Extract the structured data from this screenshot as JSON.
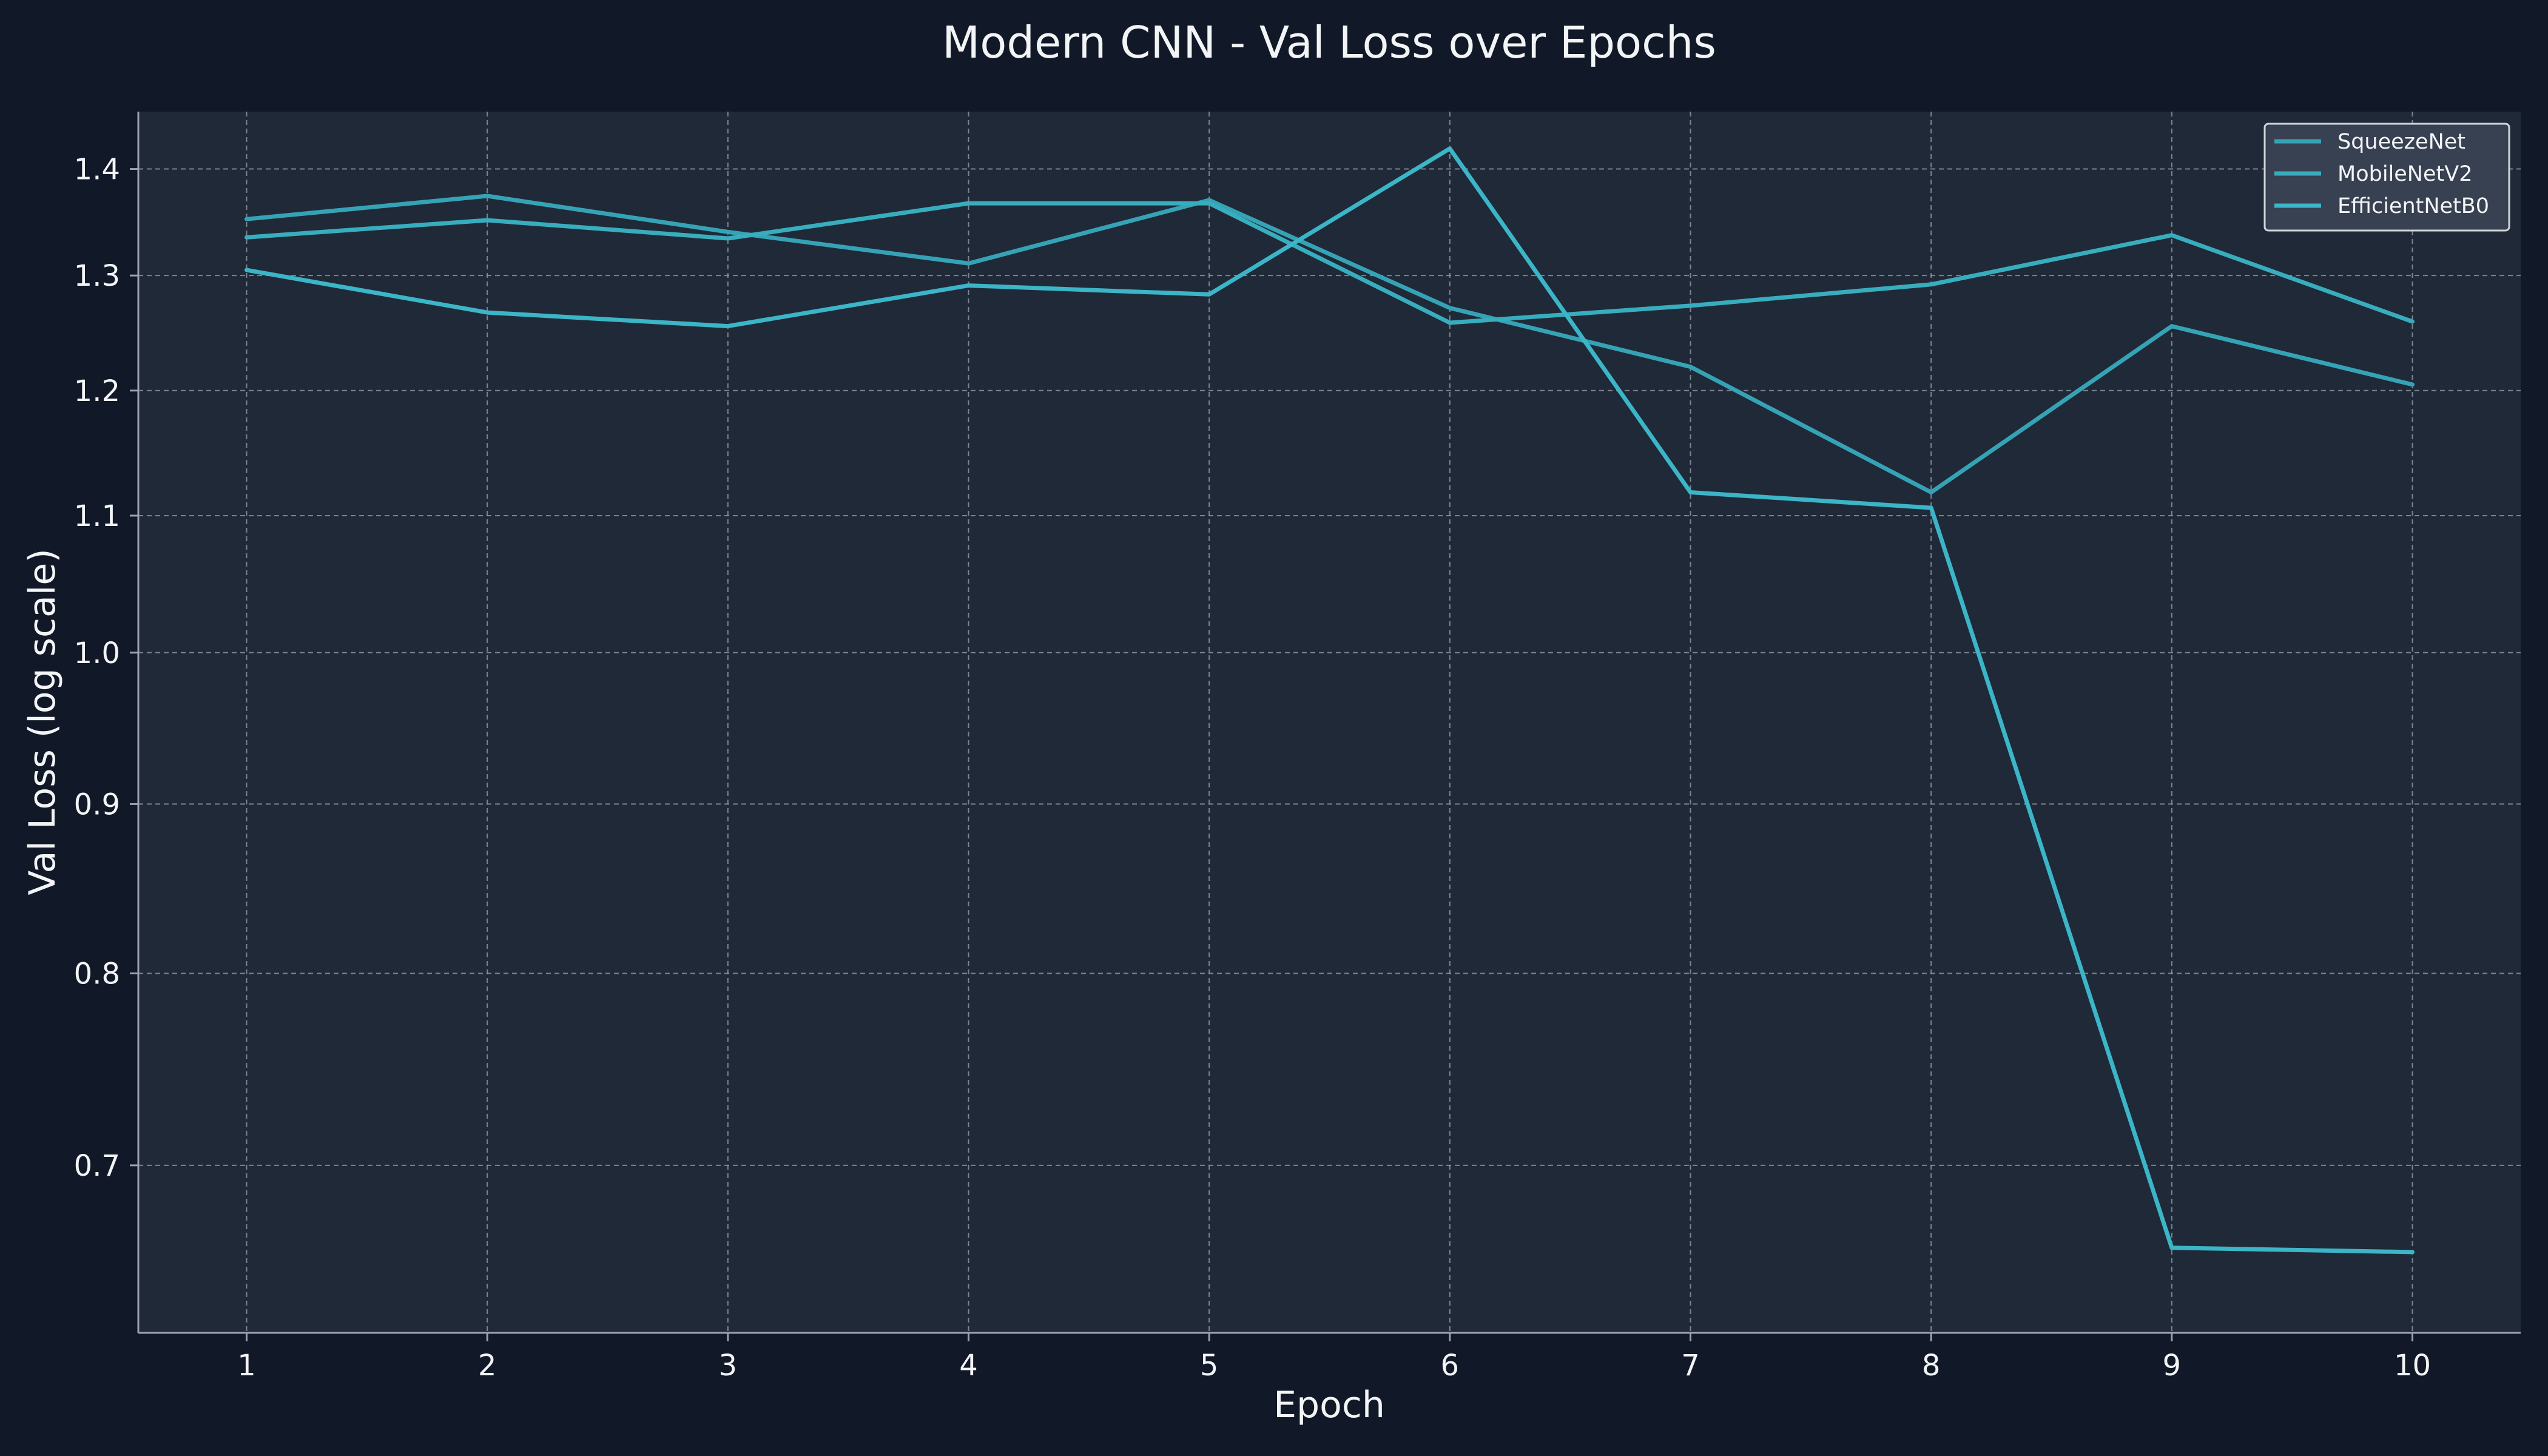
{
  "chart_data": {
    "type": "line",
    "title": "Modern CNN - Val Loss over Epochs",
    "xlabel": "Epoch",
    "ylabel": "Val Loss (log scale)",
    "x": [
      1,
      2,
      3,
      4,
      5,
      6,
      7,
      8,
      9,
      10
    ],
    "xlim": [
      0.55,
      10.45
    ],
    "ylim": [
      0.623,
      1.457
    ],
    "yscale": "log",
    "xticks": [
      1,
      2,
      3,
      4,
      5,
      6,
      7,
      8,
      9,
      10
    ],
    "yticks": [
      0.7,
      0.8,
      0.9,
      1.0,
      1.1,
      1.2,
      1.3,
      1.4
    ],
    "ytick_labels": [
      "0.7",
      "0.8",
      "0.9",
      "1.0",
      "1.1",
      "1.2",
      "1.3",
      "1.4"
    ],
    "grid": true,
    "legend_position": "top-right",
    "series": [
      {
        "name": "SqueezeNet",
        "color": "#35a3b5",
        "values": [
          1.352,
          1.374,
          1.34,
          1.311,
          1.37,
          1.271,
          1.22,
          1.118,
          1.255,
          1.205
        ]
      },
      {
        "name": "MobileNetV2",
        "color": "#37adbe",
        "values": [
          1.335,
          1.351,
          1.334,
          1.367,
          1.367,
          1.258,
          1.273,
          1.292,
          1.337,
          1.259
        ]
      },
      {
        "name": "EfficientNetB0",
        "color": "#3bb5c7",
        "values": [
          1.305,
          1.267,
          1.255,
          1.291,
          1.283,
          1.42,
          1.118,
          1.106,
          0.661,
          0.659
        ]
      }
    ]
  }
}
